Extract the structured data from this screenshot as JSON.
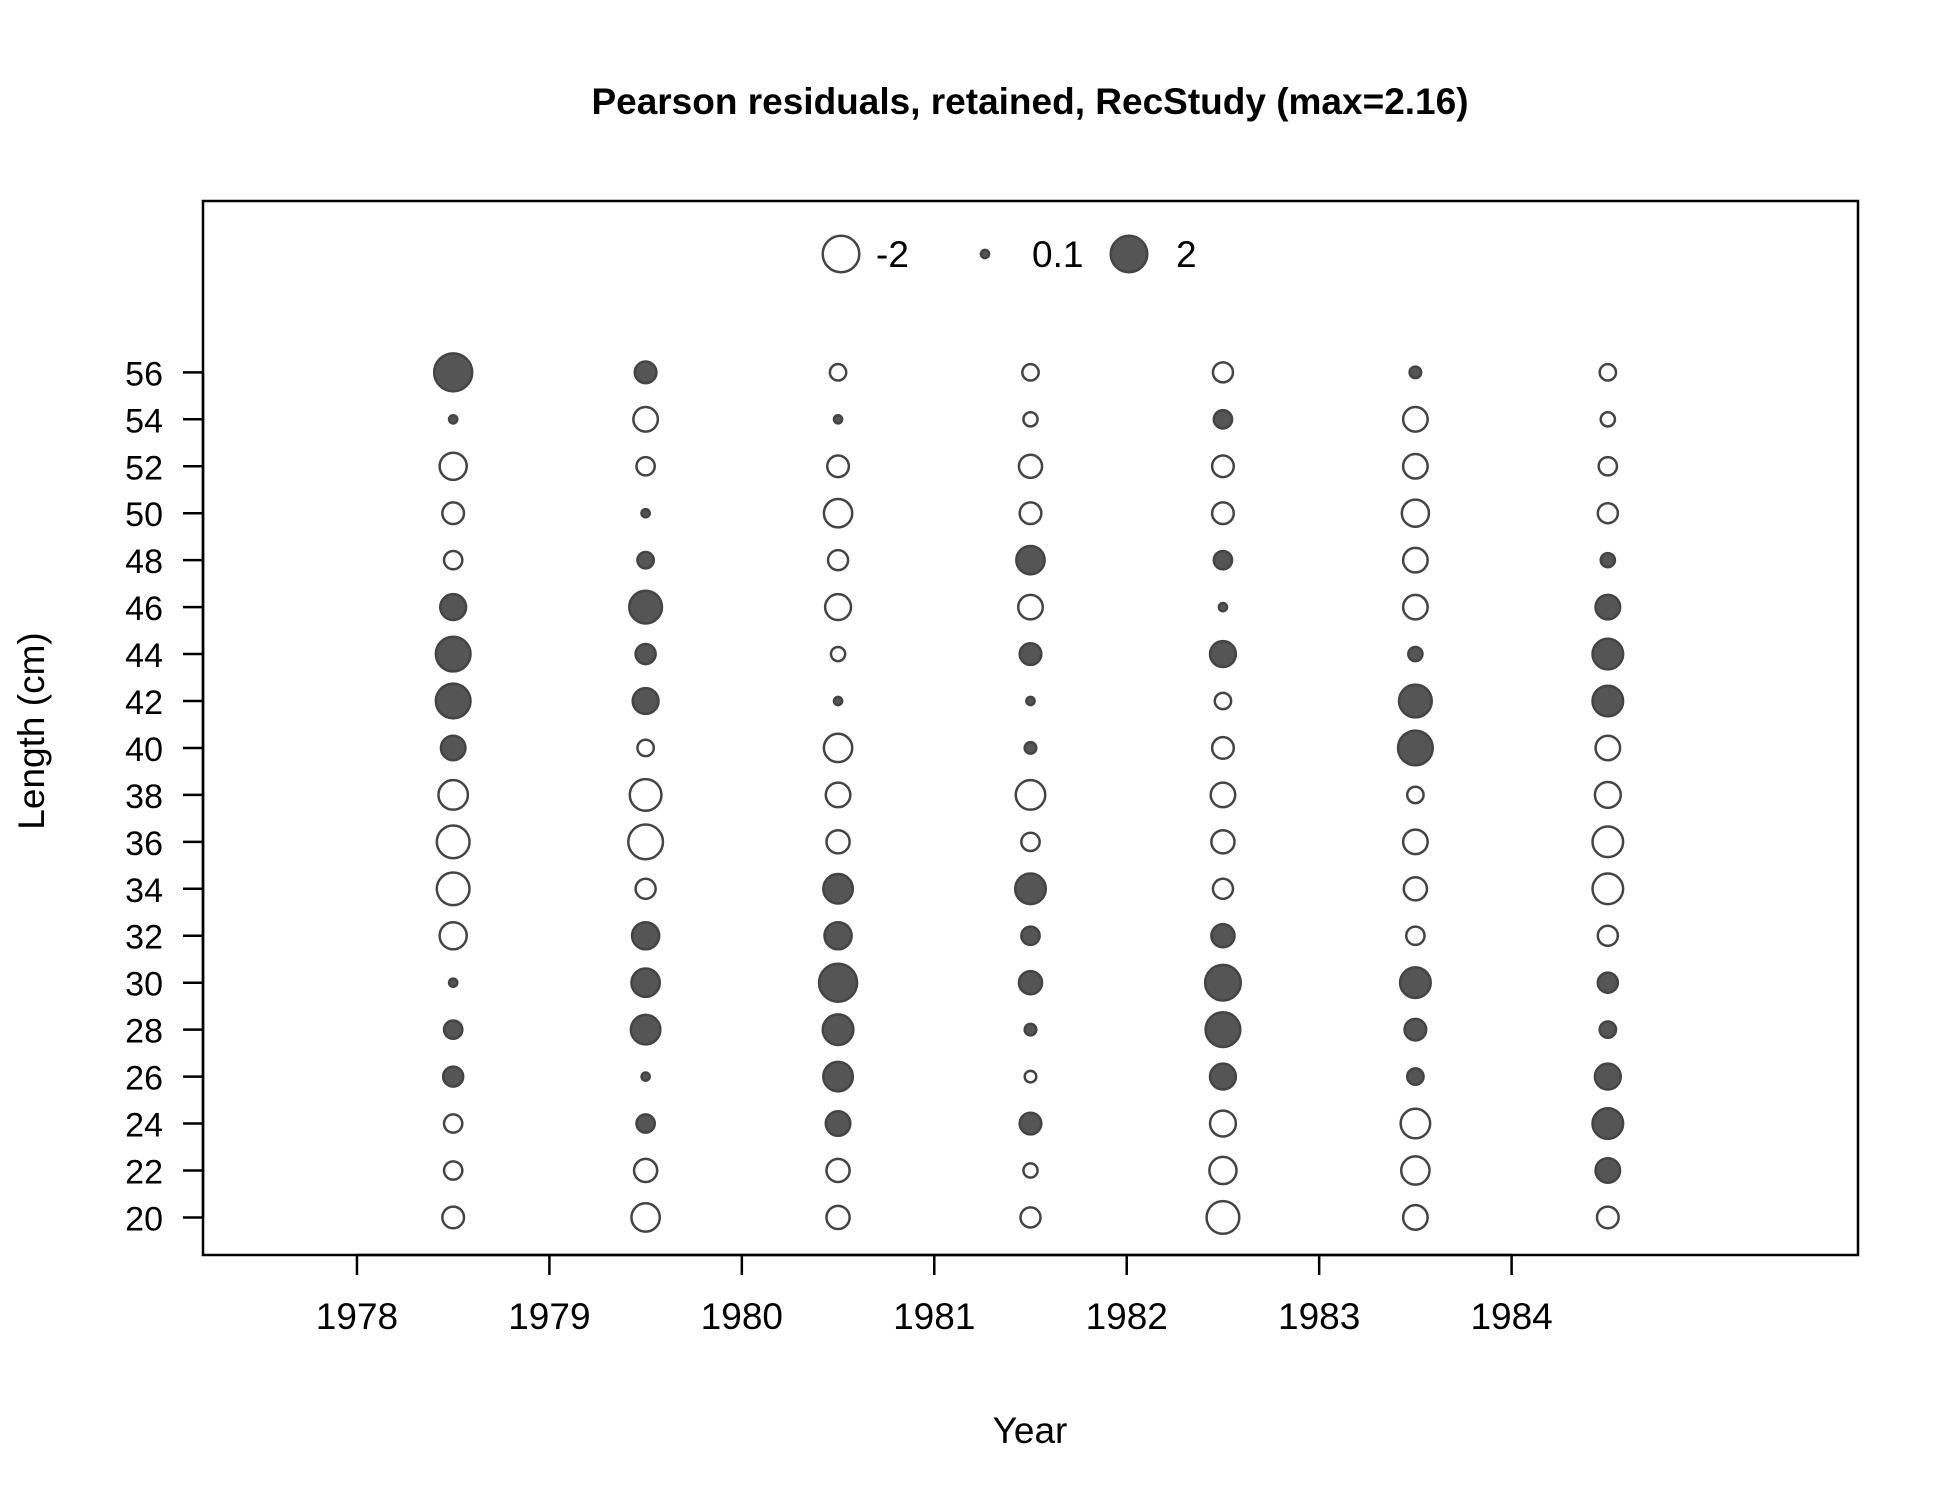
{
  "chart_data": {
    "type": "scatter",
    "subtype": "bubble",
    "title": "Pearson residuals, retained, RecStudy (max=2.16)",
    "xlabel": "Year",
    "ylabel": "Length (cm)",
    "xlim": [
      1977.2,
      1985.8
    ],
    "ylim": [
      18.4,
      63.3
    ],
    "x_ticks": [
      1978,
      1979,
      1980,
      1981,
      1982,
      1983,
      1984
    ],
    "y_ticks": [
      20,
      22,
      24,
      26,
      28,
      30,
      32,
      34,
      36,
      38,
      40,
      42,
      44,
      46,
      48,
      50,
      52,
      54,
      56
    ],
    "grid": false,
    "legend_position": "top-center",
    "legend": [
      {
        "label": "-2",
        "value": -2
      },
      {
        "label": "0.1",
        "value": 0.1
      },
      {
        "label": "2",
        "value": 2
      }
    ],
    "colors": {
      "positive_fill": "#555555",
      "stroke": "#444444",
      "negative_fill": "#ffffff"
    },
    "lengths": [
      20,
      22,
      24,
      26,
      28,
      30,
      32,
      34,
      36,
      38,
      40,
      42,
      44,
      46,
      48,
      50,
      52,
      54,
      56
    ],
    "series": [
      {
        "year": 1978.5,
        "residuals": [
          -0.7,
          -0.5,
          -0.5,
          0.6,
          0.5,
          0.1,
          -1.1,
          -1.6,
          -1.6,
          -1.3,
          0.9,
          1.8,
          1.8,
          1.0,
          -0.5,
          -0.7,
          -1.1,
          0.1,
          2.16
        ]
      },
      {
        "year": 1979.5,
        "residuals": [
          -1.2,
          -0.8,
          0.5,
          0.1,
          1.3,
          1.2,
          1.1,
          -0.6,
          -1.8,
          -1.5,
          -0.4,
          1.0,
          0.6,
          1.6,
          0.4,
          0.1,
          -0.5,
          -0.9,
          0.7
        ]
      },
      {
        "year": 1980.5,
        "residuals": [
          -0.8,
          -0.8,
          0.9,
          1.3,
          1.4,
          2.16,
          1.1,
          1.3,
          -0.8,
          -0.9,
          -1.2,
          0.1,
          -0.3,
          -1.0,
          -0.6,
          -1.2,
          -0.7,
          0.1,
          -0.4
        ]
      },
      {
        "year": 1981.5,
        "residuals": [
          -0.6,
          -0.3,
          0.7,
          -0.2,
          0.2,
          0.8,
          0.5,
          1.4,
          -0.5,
          -1.3,
          0.2,
          0.1,
          0.7,
          -0.9,
          1.2,
          -0.7,
          -0.8,
          -0.3,
          -0.4
        ]
      },
      {
        "year": 1982.5,
        "residuals": [
          -1.6,
          -1.1,
          -1.0,
          1.0,
          1.8,
          1.9,
          0.8,
          -0.6,
          -0.8,
          -0.9,
          -0.7,
          -0.4,
          1.0,
          0.1,
          0.5,
          -0.7,
          -0.7,
          0.5,
          -0.6
        ]
      },
      {
        "year": 1983.5,
        "residuals": [
          -0.9,
          -1.2,
          -1.3,
          0.4,
          0.7,
          1.4,
          -0.5,
          -0.8,
          -0.9,
          -0.4,
          1.8,
          1.6,
          0.3,
          -0.9,
          -0.9,
          -1.1,
          -0.9,
          -0.9,
          0.2
        ]
      },
      {
        "year": 1984.5,
        "residuals": [
          -0.7,
          0.9,
          1.4,
          1.0,
          0.4,
          0.6,
          -0.6,
          -1.4,
          -1.4,
          -1.0,
          -0.9,
          1.4,
          1.4,
          0.9,
          0.3,
          -0.6,
          -0.5,
          -0.3,
          -0.4
        ]
      }
    ]
  }
}
